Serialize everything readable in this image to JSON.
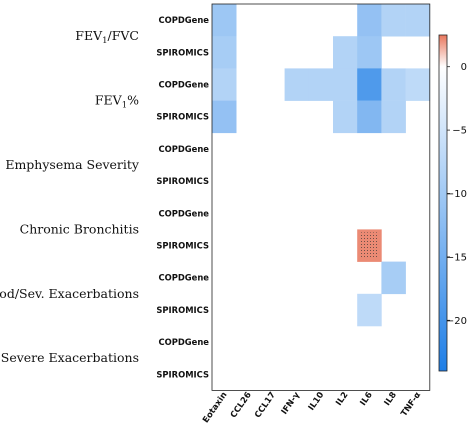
{
  "chart_data": {
    "type": "heatmap",
    "groups": [
      {
        "label": "FEV1/FVC",
        "label_main": "FEV",
        "label_sub": "1",
        "label_tail": "/FVC",
        "rows": [
          0,
          1
        ]
      },
      {
        "label": "FEV1%",
        "label_main": "FEV",
        "label_sub": "1",
        "label_tail": "%",
        "rows": [
          2,
          3
        ]
      },
      {
        "label": "Emphysema Severity",
        "label_main": "Emphysema Severity",
        "label_sub": "",
        "label_tail": "",
        "rows": [
          4,
          5
        ]
      },
      {
        "label": "Chronic Bronchitis",
        "label_main": "Chronic Bronchitis",
        "label_sub": "",
        "label_tail": "",
        "rows": [
          6,
          7
        ]
      },
      {
        "label": "Mod/Sev. Exacerbations",
        "label_main": "Mod/Sev. Exacerbations",
        "label_sub": "",
        "label_tail": "",
        "rows": [
          8,
          9
        ]
      },
      {
        "label": "Severe Exacerbations",
        "label_main": "Severe Exacerbations",
        "label_sub": "",
        "label_tail": "",
        "rows": [
          10,
          11
        ]
      }
    ],
    "rows": [
      "COPDGene",
      "SPIROMICS",
      "COPDGene",
      "SPIROMICS",
      "COPDGene",
      "SPIROMICS",
      "COPDGene",
      "SPIROMICS",
      "COPDGene",
      "SPIROMICS",
      "COPDGene",
      "SPIROMICS"
    ],
    "columns": [
      "Eotaxin",
      "CCL26",
      "CCL17",
      "IFN-γ",
      "IL10",
      "IL2",
      "IL6",
      "IL8",
      "TNF-α"
    ],
    "values": [
      [
        -6,
        null,
        null,
        null,
        null,
        null,
        -7,
        -4,
        -4
      ],
      [
        -5,
        null,
        null,
        null,
        null,
        -4,
        -6,
        null,
        null
      ],
      [
        -4,
        null,
        null,
        -4,
        -4,
        -4,
        -16,
        -4,
        -3
      ],
      [
        -7,
        null,
        null,
        null,
        null,
        -4,
        -9,
        -4,
        null
      ],
      [
        null,
        null,
        null,
        null,
        null,
        null,
        null,
        null,
        null
      ],
      [
        null,
        null,
        null,
        null,
        null,
        null,
        null,
        null,
        null
      ],
      [
        null,
        null,
        null,
        null,
        null,
        null,
        null,
        null,
        null
      ],
      [
        null,
        null,
        null,
        null,
        null,
        null,
        2,
        null,
        null
      ],
      [
        null,
        null,
        null,
        null,
        null,
        null,
        null,
        -5,
        null
      ],
      [
        null,
        null,
        null,
        null,
        null,
        null,
        -3,
        null,
        null
      ],
      [
        null,
        null,
        null,
        null,
        null,
        null,
        null,
        null,
        null
      ],
      [
        null,
        null,
        null,
        null,
        null,
        null,
        null,
        null,
        null
      ]
    ],
    "stippled": [
      [
        7,
        6
      ]
    ],
    "colorbar": {
      "min": -24,
      "max": 2.5,
      "ticks": [
        0,
        -5,
        -10,
        -15,
        -20
      ],
      "tick_labels": [
        "0",
        "−5",
        "−10",
        "−15",
        "−20"
      ],
      "negative_color": "#1e7ee6",
      "zero_color": "#ffffff",
      "positive_color": "#e8765c"
    },
    "grid": false,
    "legend": "right"
  }
}
